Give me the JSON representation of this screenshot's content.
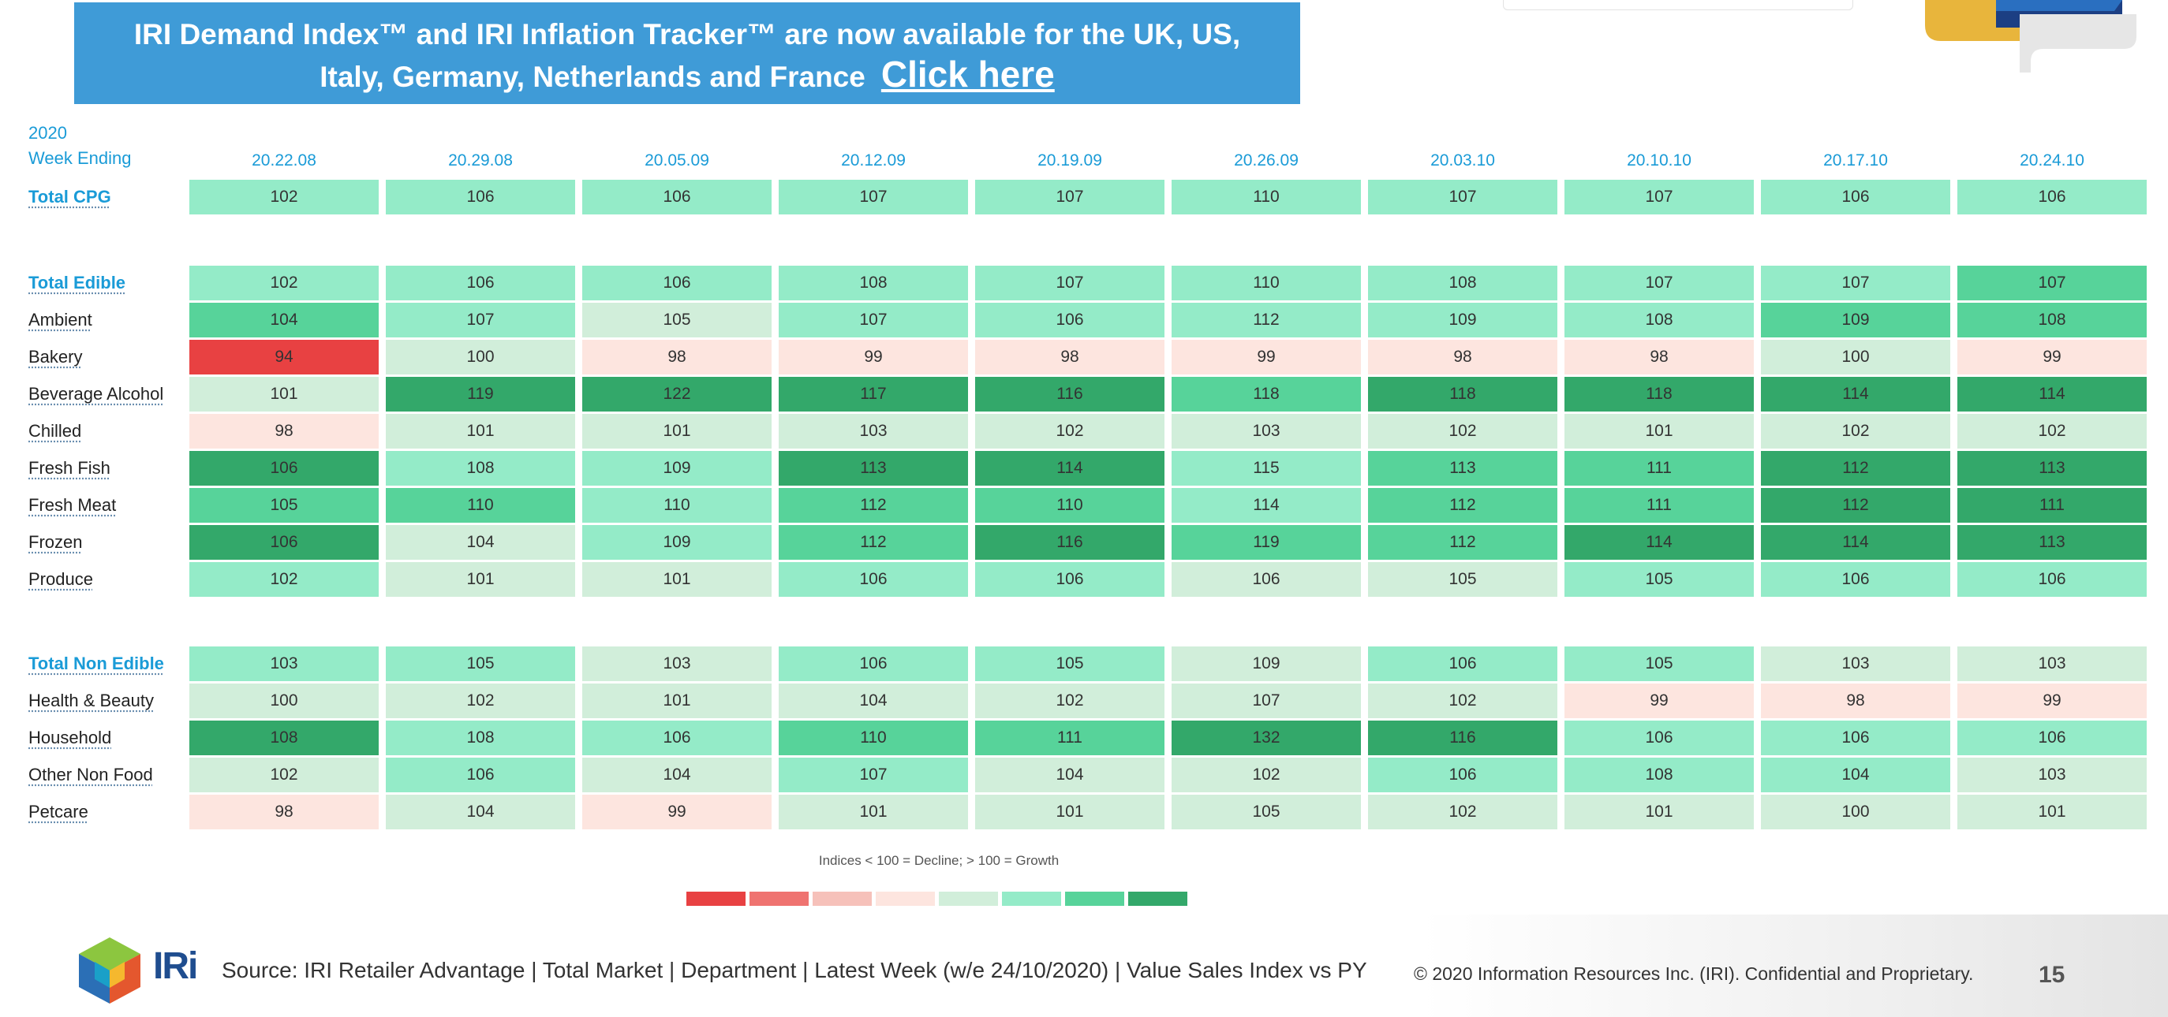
{
  "banner": {
    "line1": "IRI Demand Index™ and IRI Inflation Tracker™ are now available for the UK, US,",
    "line2": "Italy, Germany, Netherlands and France",
    "link": "Click here"
  },
  "colors": {
    "d3": "#e84142",
    "d2": "#ef7370",
    "d1": "#f6c1ba",
    "d0": "#fde5df",
    "g0": "#d1eeda",
    "g1": "#94ebc8",
    "g2": "#57d39a",
    "g3": "#33a86a",
    "banner": "#3f9bd7",
    "accent": "#1a9bd7"
  },
  "chart_data": {
    "type": "heatmap",
    "header_year": "2020",
    "header_week": "Week Ending",
    "columns": [
      "20.22.08",
      "20.29.08",
      "20.05.09",
      "20.12.09",
      "20.19.09",
      "20.26.09",
      "20.03.10",
      "20.10.10",
      "20.17.10",
      "20.24.10"
    ],
    "rows": [
      {
        "label": "Total CPG",
        "total": true,
        "values": [
          102,
          106,
          106,
          107,
          107,
          110,
          107,
          107,
          106,
          106
        ],
        "colors": [
          "g1",
          "g1",
          "g1",
          "g1",
          "g1",
          "g1",
          "g1",
          "g1",
          "g1",
          "g1"
        ]
      },
      {
        "label": "Total Edible",
        "total": true,
        "values": [
          102,
          106,
          106,
          108,
          107,
          110,
          108,
          107,
          107,
          107
        ],
        "colors": [
          "g1",
          "g1",
          "g1",
          "g1",
          "g1",
          "g1",
          "g1",
          "g1",
          "g1",
          "g2"
        ]
      },
      {
        "label": "Ambient",
        "total": false,
        "values": [
          104,
          107,
          105,
          107,
          106,
          112,
          109,
          108,
          109,
          108
        ],
        "colors": [
          "g2",
          "g1",
          "g0",
          "g1",
          "g1",
          "g1",
          "g1",
          "g1",
          "g2",
          "g2"
        ]
      },
      {
        "label": "Bakery",
        "total": false,
        "values": [
          94,
          100,
          98,
          99,
          98,
          99,
          98,
          98,
          100,
          99
        ],
        "colors": [
          "d3",
          "g0",
          "d0",
          "d0",
          "d0",
          "d0",
          "d0",
          "d0",
          "g0",
          "d0"
        ]
      },
      {
        "label": "Beverage Alcohol",
        "total": false,
        "values": [
          101,
          119,
          122,
          117,
          116,
          118,
          118,
          118,
          114,
          114
        ],
        "colors": [
          "g0",
          "g3",
          "g3",
          "g3",
          "g3",
          "g2",
          "g3",
          "g3",
          "g3",
          "g3"
        ]
      },
      {
        "label": "Chilled",
        "total": false,
        "values": [
          98,
          101,
          101,
          103,
          102,
          103,
          102,
          101,
          102,
          102
        ],
        "colors": [
          "d0",
          "g0",
          "g0",
          "g0",
          "g0",
          "g0",
          "g0",
          "g0",
          "g0",
          "g0"
        ]
      },
      {
        "label": "Fresh Fish",
        "total": false,
        "values": [
          106,
          108,
          109,
          113,
          114,
          115,
          113,
          111,
          112,
          113
        ],
        "colors": [
          "g3",
          "g1",
          "g1",
          "g3",
          "g3",
          "g1",
          "g2",
          "g2",
          "g3",
          "g3"
        ]
      },
      {
        "label": "Fresh Meat",
        "total": false,
        "values": [
          105,
          110,
          110,
          112,
          110,
          114,
          112,
          111,
          112,
          111
        ],
        "colors": [
          "g2",
          "g2",
          "g1",
          "g2",
          "g2",
          "g1",
          "g2",
          "g2",
          "g3",
          "g3"
        ]
      },
      {
        "label": "Frozen",
        "total": false,
        "values": [
          106,
          104,
          109,
          112,
          116,
          119,
          112,
          114,
          114,
          113
        ],
        "colors": [
          "g3",
          "g0",
          "g1",
          "g2",
          "g3",
          "g2",
          "g2",
          "g3",
          "g3",
          "g3"
        ]
      },
      {
        "label": "Produce",
        "total": false,
        "values": [
          102,
          101,
          101,
          106,
          106,
          106,
          105,
          105,
          106,
          106
        ],
        "colors": [
          "g1",
          "g0",
          "g0",
          "g1",
          "g1",
          "g0",
          "g0",
          "g1",
          "g1",
          "g1"
        ]
      },
      {
        "label": "Total Non Edible",
        "total": true,
        "values": [
          103,
          105,
          103,
          106,
          105,
          109,
          106,
          105,
          103,
          103
        ],
        "colors": [
          "g1",
          "g1",
          "g0",
          "g1",
          "g1",
          "g0",
          "g1",
          "g1",
          "g0",
          "g0"
        ]
      },
      {
        "label": "Health & Beauty",
        "total": false,
        "values": [
          100,
          102,
          101,
          104,
          102,
          107,
          102,
          99,
          98,
          99
        ],
        "colors": [
          "g0",
          "g0",
          "g0",
          "g0",
          "g0",
          "g0",
          "g0",
          "d0",
          "d0",
          "d0"
        ]
      },
      {
        "label": "Household",
        "total": false,
        "values": [
          108,
          108,
          106,
          110,
          111,
          132,
          116,
          106,
          106,
          106
        ],
        "colors": [
          "g3",
          "g1",
          "g1",
          "g2",
          "g2",
          "g3",
          "g3",
          "g1",
          "g1",
          "g1"
        ]
      },
      {
        "label": "Other Non Food",
        "total": false,
        "values": [
          102,
          106,
          104,
          107,
          104,
          102,
          106,
          108,
          104,
          103
        ],
        "colors": [
          "g0",
          "g1",
          "g0",
          "g1",
          "g0",
          "g0",
          "g1",
          "g1",
          "g1",
          "g0"
        ]
      },
      {
        "label": "Petcare",
        "total": false,
        "values": [
          98,
          104,
          99,
          101,
          101,
          105,
          102,
          101,
          100,
          101
        ],
        "colors": [
          "d0",
          "g0",
          "d0",
          "g0",
          "g0",
          "g0",
          "g0",
          "g0",
          "g0",
          "g0"
        ]
      }
    ],
    "legend_note": "Indices < 100 = Decline; > 100 = Growth",
    "legend_colors": [
      "d3",
      "d2",
      "d1",
      "d0",
      "g0",
      "g1",
      "g2",
      "g3"
    ]
  },
  "footer": {
    "logo_text": "IRi",
    "source": "Source: IRI Retailer Advantage | Total Market | Department | Latest Week (w/e 24/10/2020) | Value Sales Index vs PY",
    "copyright": "© 2020 Information Resources Inc. (IRI). Confidential and Proprietary.",
    "page_number": "15"
  }
}
